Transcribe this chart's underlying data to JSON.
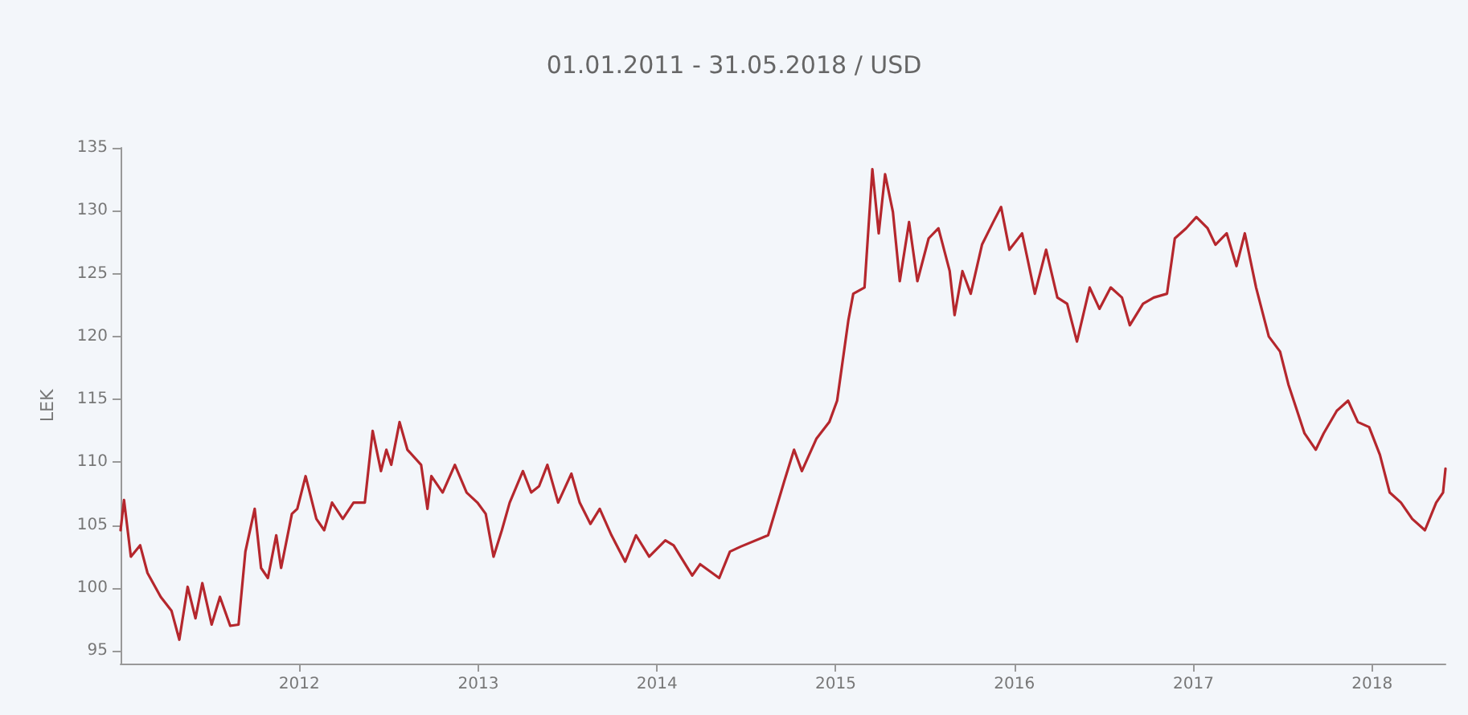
{
  "chart_data": {
    "type": "line",
    "title": "01.01.2011 - 31.05.2018 / USD",
    "ylabel": "LEK",
    "marker": "none",
    "line_style": "solid",
    "grid": false,
    "legend": false,
    "xlim": [
      "2011-01-01",
      "2018-05-31"
    ],
    "xticks": [
      {
        "value": "2012-01-01",
        "label": "2012"
      },
      {
        "value": "2013-01-01",
        "label": "2013"
      },
      {
        "value": "2014-01-01",
        "label": "2014"
      },
      {
        "value": "2015-01-01",
        "label": "2015"
      },
      {
        "value": "2016-01-01",
        "label": "2016"
      },
      {
        "value": "2017-01-01",
        "label": "2017"
      },
      {
        "value": "2018-01-01",
        "label": "2018"
      }
    ],
    "ylim": [
      94,
      135
    ],
    "yticks": [
      95,
      100,
      105,
      110,
      115,
      120,
      125,
      130,
      135
    ],
    "series": [
      {
        "color": "#b5272d",
        "x": [
          "2011-01-01",
          "2011-01-08",
          "2011-01-22",
          "2011-02-10",
          "2011-02-25",
          "2011-03-24",
          "2011-04-15",
          "2011-05-01",
          "2011-05-18",
          "2011-06-03",
          "2011-06-17",
          "2011-07-06",
          "2011-07-23",
          "2011-08-13",
          "2011-08-30",
          "2011-09-13",
          "2011-10-02",
          "2011-10-15",
          "2011-10-29",
          "2011-11-15",
          "2011-11-25",
          "2011-12-17",
          "2011-12-28",
          "2012-01-14",
          "2012-02-05",
          "2012-02-21",
          "2012-03-08",
          "2012-03-30",
          "2012-04-21",
          "2012-05-14",
          "2012-05-30",
          "2012-06-16",
          "2012-06-27",
          "2012-07-07",
          "2012-07-24",
          "2012-08-09",
          "2012-09-06",
          "2012-09-19",
          "2012-09-27",
          "2012-10-20",
          "2012-11-14",
          "2012-12-08",
          "2012-12-30",
          "2013-01-16",
          "2013-02-01",
          "2013-02-18",
          "2013-03-06",
          "2013-04-02",
          "2013-04-19",
          "2013-05-05",
          "2013-05-22",
          "2013-06-13",
          "2013-07-10",
          "2013-07-27",
          "2013-08-18",
          "2013-09-06",
          "2013-09-30",
          "2013-10-28",
          "2013-11-19",
          "2013-12-16",
          "2014-01-18",
          "2014-02-04",
          "2014-03-14",
          "2014-03-30",
          "2014-05-08",
          "2014-05-30",
          "2014-06-21",
          "2014-08-16",
          "2014-09-18",
          "2014-10-08",
          "2014-10-24",
          "2014-11-23",
          "2014-12-19",
          "2015-01-04",
          "2015-01-27",
          "2015-02-06",
          "2015-03-01",
          "2015-03-17",
          "2015-03-30",
          "2015-04-12",
          "2015-04-28",
          "2015-05-12",
          "2015-05-31",
          "2015-06-17",
          "2015-07-10",
          "2015-07-30",
          "2015-08-22",
          "2015-09-01",
          "2015-09-17",
          "2015-10-04",
          "2015-10-27",
          "2015-11-19",
          "2015-12-05",
          "2015-12-22",
          "2016-01-17",
          "2016-02-12",
          "2016-03-06",
          "2016-03-29",
          "2016-04-18",
          "2016-05-08",
          "2016-06-03",
          "2016-06-23",
          "2016-07-16",
          "2016-08-08",
          "2016-08-24",
          "2016-09-20",
          "2016-10-12",
          "2016-11-08",
          "2016-11-24",
          "2016-12-17",
          "2017-01-07",
          "2017-01-30",
          "2017-02-15",
          "2017-03-10",
          "2017-03-30",
          "2017-04-16",
          "2017-05-09",
          "2017-06-04",
          "2017-06-27",
          "2017-07-14",
          "2017-08-16",
          "2017-09-08",
          "2017-09-24",
          "2017-10-21",
          "2017-11-13",
          "2017-12-03",
          "2017-12-26",
          "2018-01-17",
          "2018-02-06",
          "2018-03-01",
          "2018-03-24",
          "2018-04-19",
          "2018-05-12",
          "2018-05-26",
          "2018-05-31"
        ],
        "values": [
          104.6,
          107,
          102.5,
          103.4,
          101.2,
          99.3,
          98.2,
          95.9,
          100.1,
          97.6,
          100.4,
          97.1,
          99.3,
          97,
          97.1,
          102.9,
          106.3,
          101.6,
          100.8,
          104.2,
          101.6,
          105.9,
          106.3,
          108.9,
          105.5,
          104.6,
          106.8,
          105.5,
          106.8,
          106.8,
          112.5,
          109.3,
          111,
          109.8,
          113.2,
          111,
          109.8,
          106.3,
          108.9,
          107.6,
          109.8,
          107.6,
          106.8,
          105.9,
          102.5,
          104.6,
          106.8,
          109.3,
          107.6,
          108.1,
          109.8,
          106.8,
          109.1,
          106.8,
          105.1,
          106.3,
          104.2,
          102.1,
          104.2,
          102.5,
          103.8,
          103.4,
          101,
          101.9,
          100.8,
          102.9,
          103.3,
          104.2,
          108.5,
          111,
          109.3,
          111.9,
          113.2,
          114.9,
          121.3,
          123.4,
          123.9,
          133.3,
          128.2,
          132.9,
          129.9,
          124.4,
          129.1,
          124.4,
          127.8,
          128.6,
          125.2,
          121.7,
          125.2,
          123.4,
          127.3,
          129.1,
          130.3,
          126.9,
          128.2,
          123.4,
          126.9,
          123.1,
          122.6,
          119.6,
          123.9,
          122.2,
          123.9,
          123.1,
          120.9,
          122.6,
          123.1,
          123.4,
          127.8,
          128.6,
          129.5,
          128.6,
          127.3,
          128.2,
          125.6,
          128.2,
          123.9,
          120,
          118.8,
          116.2,
          112.3,
          111,
          112.3,
          114.1,
          114.9,
          113.2,
          112.8,
          110.6,
          107.6,
          106.8,
          105.5,
          104.6,
          106.8,
          107.6,
          109.5
        ]
      }
    ]
  }
}
